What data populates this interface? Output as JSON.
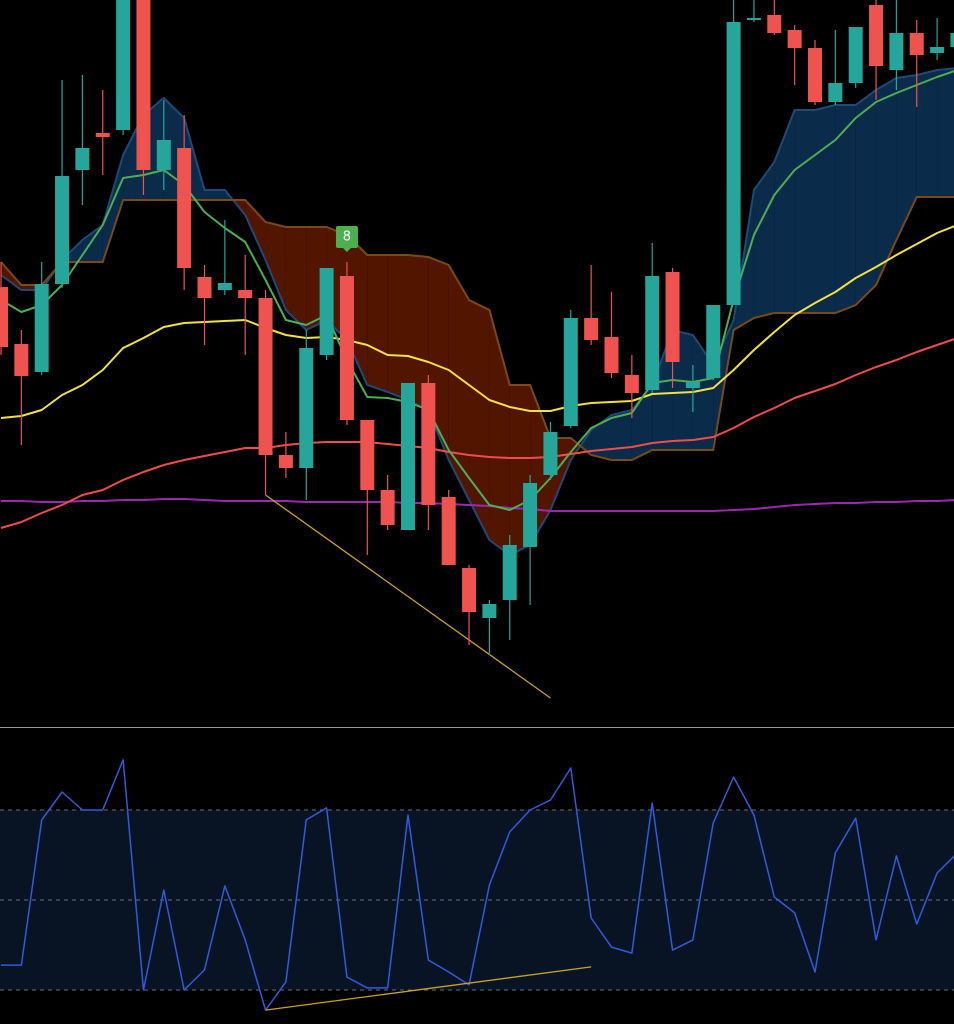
{
  "chart_data": [
    {
      "type": "candlestick",
      "ylim": [
        0,
        730
      ],
      "up_color": "#26a69a",
      "down_color": "#ef5350",
      "open": [
        443,
        386,
        358,
        446,
        560,
        597,
        600,
        730,
        560,
        582,
        453,
        440,
        440,
        432,
        275,
        262,
        375,
        454,
        310,
        240,
        200,
        347,
        233,
        162,
        112,
        130,
        183,
        255,
        304,
        412,
        393,
        355,
        340,
        458,
        342,
        352,
        425,
        710,
        715,
        700,
        682,
        628,
        647,
        725,
        660,
        697,
        677,
        683
      ],
      "high": [
        468,
        400,
        468,
        650,
        655,
        640,
        730,
        730,
        630,
        615,
        465,
        510,
        475,
        440,
        298,
        400,
        462,
        468,
        310,
        255,
        347,
        355,
        240,
        165,
        130,
        195,
        255,
        308,
        420,
        465,
        438,
        375,
        487,
        462,
        365,
        425,
        730,
        730,
        730,
        705,
        690,
        700,
        703,
        730,
        730,
        710,
        712,
        710
      ],
      "low": [
        375,
        285,
        355,
        442,
        525,
        555,
        595,
        535,
        540,
        440,
        385,
        435,
        375,
        235,
        252,
        230,
        370,
        305,
        175,
        200,
        200,
        200,
        165,
        85,
        75,
        90,
        125,
        250,
        302,
        385,
        352,
        312,
        337,
        342,
        318,
        350,
        425,
        708,
        695,
        645,
        625,
        625,
        642,
        630,
        640,
        623,
        670,
        680
      ],
      "close": [
        383,
        354,
        446,
        554,
        582,
        593,
        730,
        560,
        590,
        462,
        432,
        447,
        432,
        275,
        262,
        382,
        462,
        310,
        240,
        205,
        347,
        225,
        165,
        118,
        126,
        185,
        247,
        298,
        412,
        390,
        357,
        337,
        454,
        368,
        348,
        425,
        708,
        712,
        697,
        682,
        628,
        647,
        703,
        664,
        697,
        675,
        683,
        697
      ],
      "series": [
        {
          "color": "#4a5ea8",
          "values": [
            229,
            229,
            228,
            228,
            229,
            229,
            230,
            230,
            231,
            231,
            230,
            229,
            229,
            229,
            229,
            228,
            228,
            228,
            228,
            228,
            227,
            227,
            226,
            225,
            224,
            222,
            221,
            219,
            219,
            219,
            219,
            219,
            219,
            219,
            219,
            219,
            220,
            221,
            223,
            225,
            226,
            227,
            227,
            228,
            228,
            229,
            229,
            230
          ],
          "line_color": "#9c27b0"
        },
        {
          "color": "#f04c4c",
          "values": [
            202,
            208,
            217,
            225,
            235,
            240,
            250,
            258,
            265,
            270,
            274,
            278,
            282,
            282,
            285,
            287,
            288,
            288,
            288,
            286,
            284,
            282,
            278,
            275,
            273,
            272,
            272,
            273,
            276,
            279,
            281,
            283,
            287,
            289,
            290,
            293,
            302,
            313,
            322,
            332,
            339,
            346,
            355,
            363,
            370,
            378,
            385,
            392
          ]
        },
        {
          "color": "#f2e13e",
          "values": [
            312,
            314,
            320,
            335,
            345,
            360,
            382,
            392,
            403,
            407,
            408,
            409,
            410,
            402,
            395,
            392,
            393,
            390,
            385,
            375,
            374,
            368,
            360,
            345,
            330,
            323,
            319,
            319,
            324,
            327,
            328,
            329,
            336,
            337,
            338,
            342,
            360,
            380,
            398,
            415,
            427,
            438,
            452,
            463,
            475,
            486,
            497,
            505
          ]
        },
        {
          "color": "#4caf50",
          "values": [
            430,
            418,
            425,
            445,
            475,
            505,
            552,
            555,
            560,
            545,
            518,
            502,
            488,
            450,
            410,
            405,
            415,
            370,
            333,
            332,
            328,
            320,
            280,
            252,
            225,
            220,
            230,
            252,
            278,
            302,
            312,
            317,
            347,
            350,
            348,
            352,
            430,
            495,
            535,
            560,
            575,
            590,
            612,
            628,
            637,
            645,
            653,
            660
          ]
        }
      ],
      "cloud": {
        "up_color": "#0b2b4b",
        "down_color": "#521500",
        "up_edge": "#1d4a78",
        "down_edge": "#7a4a12",
        "span_a": [
          455,
          440,
          440,
          470,
          490,
          505,
          575,
          615,
          632,
          612,
          540,
          540,
          515,
          470,
          420,
          400,
          410,
          390,
          345,
          338,
          330,
          320,
          270,
          230,
          190,
          175,
          185,
          220,
          270,
          300,
          315,
          320,
          345,
          400,
          395,
          365,
          410,
          540,
          568,
          620,
          620,
          625,
          625,
          640,
          652,
          655,
          660,
          662
        ],
        "span_b": [
          468,
          445,
          445,
          468,
          468,
          468,
          530,
          530,
          530,
          530,
          530,
          530,
          530,
          508,
          503,
          503,
          503,
          495,
          475,
          475,
          475,
          473,
          465,
          430,
          420,
          345,
          345,
          292,
          292,
          275,
          270,
          270,
          280,
          280,
          280,
          280,
          400,
          412,
          417,
          417,
          417,
          417,
          425,
          445,
          490,
          533,
          533,
          533
        ]
      },
      "annotations": [
        {
          "text": "8",
          "x": 17,
          "color": "#4caf50"
        }
      ],
      "trendline": {
        "x": [
          13,
          27
        ],
        "values": [
          235,
          32
        ],
        "color": "#c9a227"
      }
    },
    {
      "type": "line",
      "ylim": [
        10,
        105
      ],
      "color": "#2f5bdc",
      "band": [
        20,
        80
      ],
      "band_color": "#081424",
      "levels": [
        80,
        50,
        20
      ],
      "values": [
        28.3,
        28.3,
        76.7,
        86,
        80,
        80,
        96.7,
        20,
        53.3,
        20,
        26.7,
        54.7,
        36.7,
        13.3,
        22.7,
        76.7,
        80.7,
        24.3,
        20.7,
        20.7,
        78.3,
        30,
        26,
        21.7,
        55,
        72.7,
        80,
        83.3,
        94,
        44,
        34.3,
        32.3,
        82.3,
        33.3,
        36.7,
        75.7,
        91,
        78.3,
        51,
        45.7,
        26,
        65.7,
        77.3,
        36.7,
        64.7,
        42,
        59,
        65.7
      ],
      "trendline": {
        "x": [
          13,
          29
        ],
        "values": [
          13.3,
          27.7
        ],
        "color": "#c9a227"
      }
    }
  ]
}
